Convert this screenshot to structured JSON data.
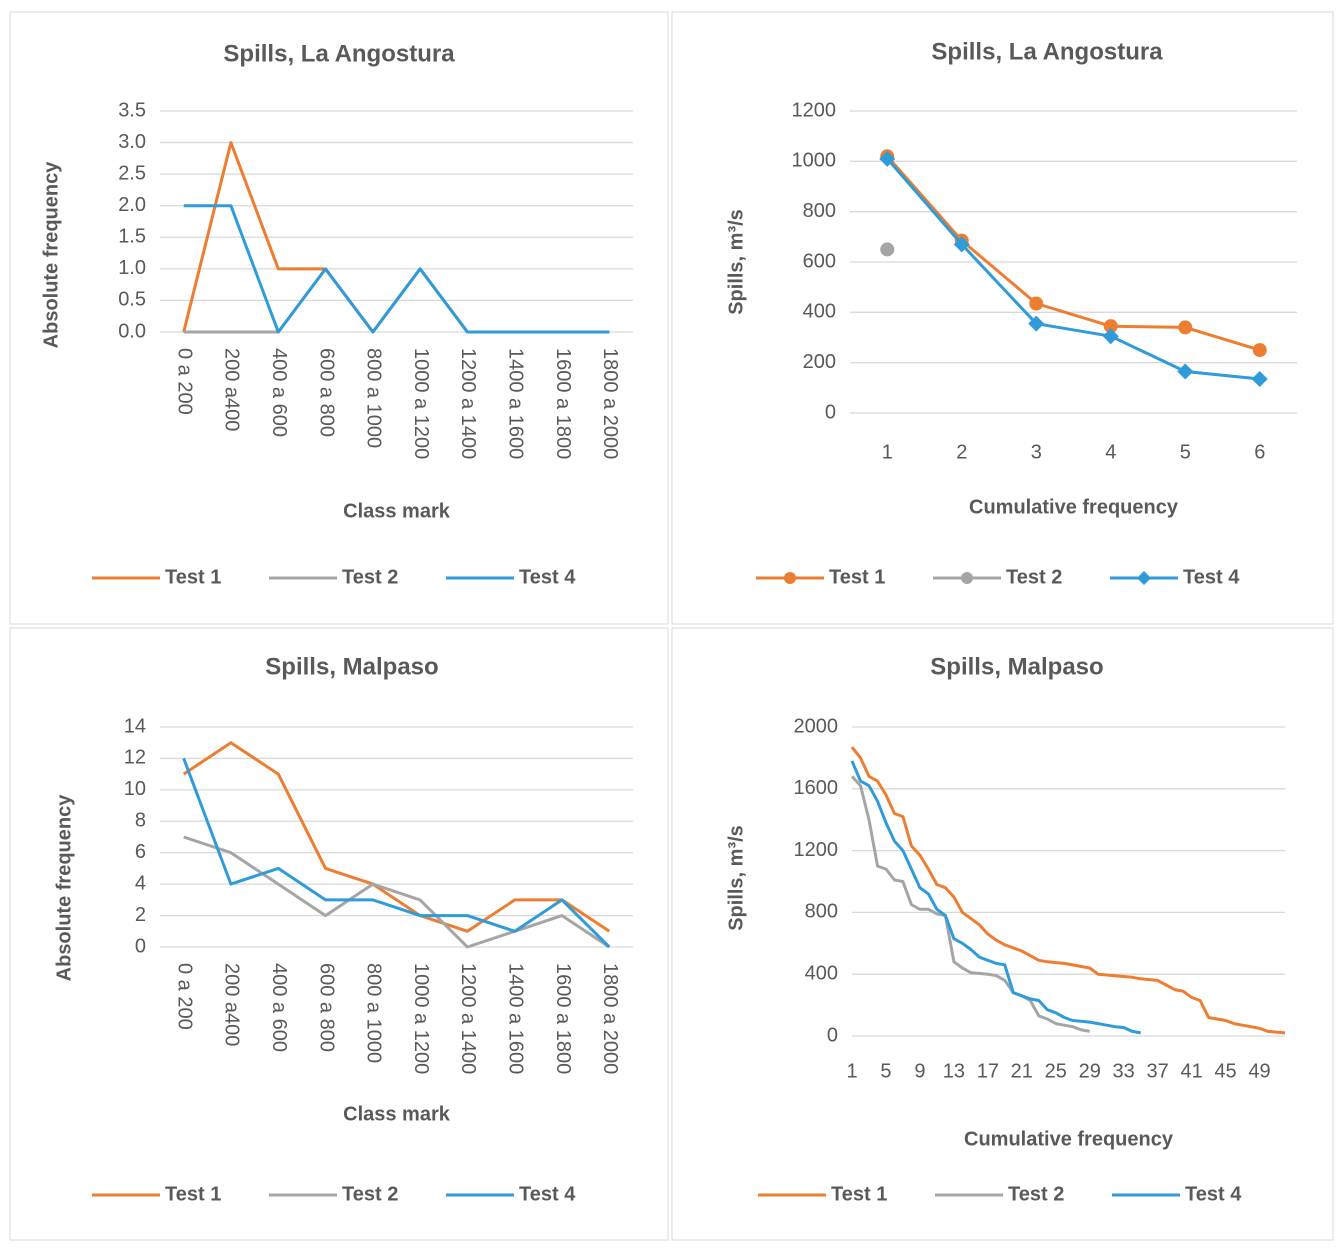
{
  "chart_data": [
    {
      "type": "line",
      "title": "Spills, La Angostura",
      "x_label": "Class mark",
      "y_label": "Absolute frequency",
      "categories": [
        "0 a 200",
        "200 a400",
        "400 a 600",
        "600 a 800",
        "800 a 1000",
        "1000 a 1200",
        "1200 a 1400",
        "1400 a 1600",
        "1600 a 1800",
        "1800 a 2000"
      ],
      "series": [
        {
          "name": "Test 1",
          "color": "#ed7d31",
          "values": [
            0,
            3,
            1,
            1,
            0,
            1,
            0,
            0,
            0,
            0
          ]
        },
        {
          "name": "Test 2",
          "color": "#a5a5a5",
          "values": [
            0,
            0,
            0,
            1,
            0,
            1,
            0,
            0,
            0,
            0
          ]
        },
        {
          "name": "Test 4",
          "color": "#2f9bd8",
          "values": [
            2,
            2,
            0,
            1,
            0,
            1,
            0,
            0,
            0,
            0
          ]
        }
      ],
      "ylim": [
        0,
        3.5
      ],
      "yticks": [
        {
          "value": 0,
          "label": "0.0"
        },
        0.5,
        {
          "value": 1,
          "label": "1.0"
        },
        1.5,
        {
          "value": 2,
          "label": "2.0"
        },
        2.5,
        {
          "value": 3,
          "label": "3.0"
        },
        3.5
      ],
      "grid": true,
      "legend": "bottom"
    },
    {
      "type": "line",
      "title": "Spills, La Angostura",
      "x_label": "Cumulative frequency",
      "y_label": "Spills, m³/s",
      "categories": [
        1,
        2,
        3,
        4,
        5,
        6
      ],
      "series": [
        {
          "name": "Test 1",
          "color": "#ed7d31",
          "marker": "circle",
          "values": [
            1020,
            685,
            435,
            345,
            340,
            250
          ]
        },
        {
          "name": "Test 2",
          "color": "#a5a5a5",
          "marker": "circle",
          "values": [
            650,
            null,
            null,
            null,
            null,
            null
          ]
        },
        {
          "name": "Test 4",
          "color": "#2f9bd8",
          "marker": "diamond",
          "values": [
            1010,
            670,
            355,
            305,
            165,
            135
          ]
        }
      ],
      "ylim": [
        0,
        1200
      ],
      "yticks": [
        0,
        200,
        400,
        600,
        800,
        1000,
        1200
      ],
      "grid": true,
      "legend": "bottom"
    },
    {
      "type": "line",
      "title": "Spills, Malpaso",
      "x_label": "Class mark",
      "y_label": "Absolute frequency",
      "categories": [
        "0 a 200",
        "200 a400",
        "400 a 600",
        "600 a 800",
        "800 a 1000",
        "1000 a 1200",
        "1200 a 1400",
        "1400 a 1600",
        "1600 a 1800",
        "1800 a 2000"
      ],
      "series": [
        {
          "name": "Test 1",
          "color": "#ed7d31",
          "values": [
            11,
            13,
            11,
            5,
            4,
            2,
            1,
            3,
            3,
            1
          ]
        },
        {
          "name": "Test 2",
          "color": "#a5a5a5",
          "values": [
            7,
            6,
            4,
            2,
            4,
            3,
            0,
            1,
            2,
            0
          ]
        },
        {
          "name": "Test 4",
          "color": "#2f9bd8",
          "values": [
            12,
            4,
            5,
            3,
            3,
            2,
            2,
            1,
            3,
            0
          ]
        }
      ],
      "ylim": [
        0,
        14
      ],
      "yticks": [
        0,
        2,
        4,
        6,
        8,
        10,
        12,
        14
      ],
      "grid": true,
      "legend": "bottom"
    },
    {
      "type": "line",
      "title": "Spills, Malpaso",
      "x_label": "Cumulative frequency",
      "y_label": "Spills, m³/s",
      "x": [
        1,
        2,
        3,
        4,
        5,
        6,
        7,
        8,
        9,
        10,
        11,
        12,
        13,
        14,
        15,
        16,
        17,
        18,
        19,
        20,
        21,
        22,
        23,
        24,
        25,
        26,
        27,
        28,
        29,
        30,
        31,
        32,
        33,
        34,
        35,
        36,
        37,
        38,
        39,
        40,
        41,
        42,
        43,
        44,
        45,
        46,
        47,
        48,
        49,
        50,
        51,
        52
      ],
      "series": [
        {
          "name": "Test 1",
          "color": "#ed7d31",
          "values": [
            1870,
            1800,
            1680,
            1650,
            1560,
            1440,
            1420,
            1230,
            1170,
            1080,
            980,
            960,
            900,
            800,
            760,
            720,
            660,
            620,
            590,
            570,
            550,
            520,
            490,
            480,
            475,
            470,
            460,
            450,
            440,
            400,
            395,
            390,
            385,
            380,
            370,
            365,
            360,
            330,
            300,
            290,
            250,
            230,
            120,
            110,
            100,
            80,
            70,
            60,
            50,
            30,
            25,
            20
          ]
        },
        {
          "name": "Test 2",
          "color": "#a5a5a5",
          "values": [
            1680,
            1620,
            1400,
            1100,
            1080,
            1010,
            1000,
            850,
            820,
            820,
            790,
            780,
            480,
            440,
            410,
            405,
            400,
            390,
            360,
            280,
            260,
            230,
            130,
            110,
            80,
            70,
            60,
            40,
            30,
            null,
            null,
            null,
            null,
            null,
            null,
            null,
            null,
            null,
            null,
            null,
            null,
            null,
            null,
            null,
            null,
            null,
            null,
            null,
            null,
            null,
            null,
            null
          ]
        },
        {
          "name": "Test 4",
          "color": "#2f9bd8",
          "values": [
            1780,
            1650,
            1620,
            1520,
            1380,
            1260,
            1200,
            1080,
            960,
            920,
            820,
            780,
            630,
            600,
            560,
            510,
            490,
            470,
            460,
            280,
            260,
            240,
            230,
            170,
            150,
            120,
            100,
            95,
            90,
            80,
            70,
            60,
            55,
            30,
            20,
            null,
            null,
            null,
            null,
            null,
            null,
            null,
            null,
            null,
            null,
            null,
            null,
            null,
            null,
            null,
            null,
            null
          ]
        }
      ],
      "xlim": [
        1,
        52
      ],
      "xticks": [
        1,
        5,
        9,
        13,
        17,
        21,
        25,
        29,
        33,
        37,
        41,
        45,
        49
      ],
      "ylim": [
        0,
        2000
      ],
      "yticks": [
        0,
        400,
        800,
        1200,
        1600,
        2000
      ],
      "grid": true,
      "legend": "bottom"
    }
  ]
}
